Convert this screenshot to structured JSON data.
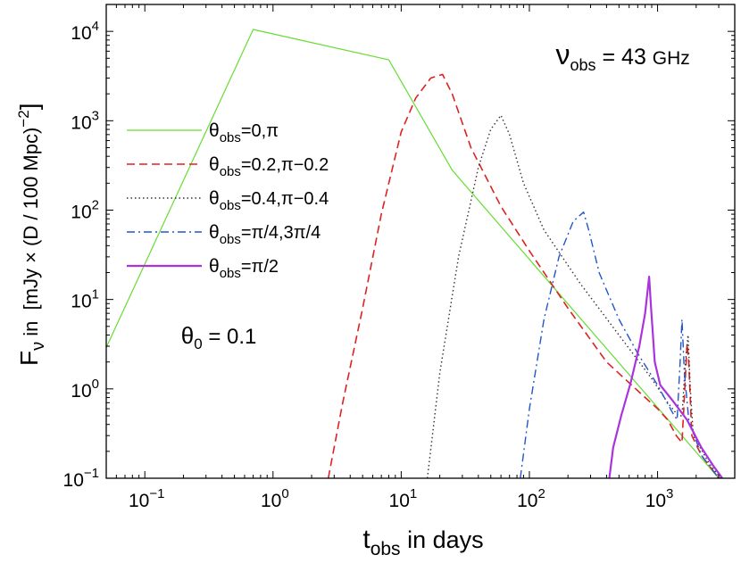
{
  "chart_data": {
    "type": "line",
    "title": "",
    "xlabel": {
      "main": "t",
      "sub": "obs",
      "rest": " in days"
    },
    "ylabel": {
      "main": "F",
      "sub": "ν",
      "rest1": " in  [mJy × (D / 100 Mpc)",
      "sup": "−2",
      "rest2": "]"
    },
    "xscale": "log",
    "yscale": "log",
    "xlim": [
      0.05,
      4000
    ],
    "ylim": [
      0.1,
      20000
    ],
    "x_ticks": [
      {
        "value": 0.1,
        "base": "10",
        "exp": "−1"
      },
      {
        "value": 1,
        "base": "10",
        "exp": "0"
      },
      {
        "value": 10,
        "base": "10",
        "exp": "1"
      },
      {
        "value": 100,
        "base": "10",
        "exp": "2"
      },
      {
        "value": 1000,
        "base": "10",
        "exp": "3"
      }
    ],
    "y_ticks": [
      {
        "value": 0.1,
        "base": "10",
        "exp": "−1"
      },
      {
        "value": 1,
        "base": "10",
        "exp": "0"
      },
      {
        "value": 10,
        "base": "10",
        "exp": "1"
      },
      {
        "value": 100,
        "base": "10",
        "exp": "2"
      },
      {
        "value": 1000,
        "base": "10",
        "exp": "3"
      },
      {
        "value": 10000,
        "base": "10",
        "exp": "4"
      }
    ],
    "grid": false,
    "legend_position": "left",
    "annotations": [
      {
        "id": "freq",
        "main": "ν",
        "sub": "obs",
        "rest": " = 43 ",
        "unit": "GHz",
        "position": "top-right"
      },
      {
        "id": "theta0",
        "main": "θ",
        "sub": "0",
        "rest": " = 0.1",
        "position": "left-middle"
      }
    ],
    "series": [
      {
        "name": "θobs=0,π",
        "legend": {
          "main": "θ",
          "sub": "obs",
          "rest": "=0,π"
        },
        "color": "#66dd33",
        "style": "solid",
        "width": 1.2,
        "points": [
          [
            0.05,
            2.9
          ],
          [
            0.7,
            10500
          ],
          [
            8,
            4800
          ],
          [
            25,
            280
          ],
          [
            3000,
            0.1
          ]
        ]
      },
      {
        "name": "θobs=0.2,π−0.2",
        "legend": {
          "main": "θ",
          "sub": "obs",
          "rest": "=0.2,π−0.2"
        },
        "color": "#dd2222",
        "style": "dashed",
        "width": 1.6,
        "points": [
          [
            2.7,
            0.1
          ],
          [
            3.5,
            0.7
          ],
          [
            5,
            8
          ],
          [
            7,
            90
          ],
          [
            10,
            750
          ],
          [
            13,
            1800
          ],
          [
            17,
            3000
          ],
          [
            21,
            3300
          ],
          [
            25,
            2000
          ],
          [
            35,
            500
          ],
          [
            60,
            110
          ],
          [
            100,
            35
          ],
          [
            200,
            8
          ],
          [
            400,
            2
          ],
          [
            800,
            0.8
          ],
          [
            1000,
            0.6
          ],
          [
            1200,
            0.45
          ],
          [
            1400,
            0.3
          ],
          [
            1550,
            0.25
          ],
          [
            1600,
            0.6
          ],
          [
            1700,
            3.2
          ],
          [
            1750,
            2
          ],
          [
            1850,
            0.3
          ],
          [
            2200,
            0.18
          ],
          [
            3000,
            0.1
          ]
        ]
      },
      {
        "name": "θobs=0.4,π−0.4",
        "legend": {
          "main": "θ",
          "sub": "obs",
          "rest": "=0.4,π−0.4"
        },
        "color": "#333333",
        "style": "dotted",
        "width": 1.4,
        "points": [
          [
            16,
            0.1
          ],
          [
            20,
            1.5
          ],
          [
            28,
            30
          ],
          [
            40,
            300
          ],
          [
            50,
            800
          ],
          [
            60,
            1150
          ],
          [
            70,
            700
          ],
          [
            90,
            200
          ],
          [
            130,
            60
          ],
          [
            250,
            15
          ],
          [
            500,
            4
          ],
          [
            900,
            1.3
          ],
          [
            1200,
            0.7
          ],
          [
            1450,
            0.5
          ],
          [
            1550,
            0.5
          ],
          [
            1650,
            2
          ],
          [
            1730,
            4
          ],
          [
            1800,
            1
          ],
          [
            1900,
            0.3
          ],
          [
            2500,
            0.15
          ],
          [
            3100,
            0.1
          ]
        ]
      },
      {
        "name": "θobs=π/4,3π/4",
        "legend": {
          "main": "θ",
          "sub": "obs",
          "rest": "=π/4,3π/4"
        },
        "color": "#2255cc",
        "style": "dashdot",
        "width": 1.4,
        "points": [
          [
            85,
            0.1
          ],
          [
            100,
            0.6
          ],
          [
            130,
            6
          ],
          [
            170,
            30
          ],
          [
            220,
            75
          ],
          [
            265,
            95
          ],
          [
            290,
            60
          ],
          [
            350,
            20
          ],
          [
            500,
            6
          ],
          [
            700,
            2.5
          ],
          [
            1000,
            1.1
          ],
          [
            1300,
            0.55
          ],
          [
            1420,
            0.45
          ],
          [
            1500,
            2
          ],
          [
            1550,
            6
          ],
          [
            1620,
            1.5
          ],
          [
            1750,
            0.45
          ],
          [
            2200,
            0.18
          ],
          [
            3000,
            0.1
          ]
        ]
      },
      {
        "name": "θobs=π/2",
        "legend": {
          "main": "θ",
          "sub": "obs",
          "rest": "=π/2"
        },
        "color": "#aa33dd",
        "style": "solid",
        "width": 2.2,
        "points": [
          [
            420,
            0.1
          ],
          [
            450,
            0.22
          ],
          [
            520,
            0.5
          ],
          [
            620,
            1.2
          ],
          [
            720,
            3
          ],
          [
            800,
            7
          ],
          [
            860,
            18
          ],
          [
            890,
            8
          ],
          [
            950,
            2
          ],
          [
            1050,
            1.1
          ],
          [
            1300,
            0.75
          ],
          [
            1700,
            0.45
          ],
          [
            2200,
            0.22
          ],
          [
            2700,
            0.14
          ],
          [
            3200,
            0.1
          ]
        ]
      }
    ]
  }
}
